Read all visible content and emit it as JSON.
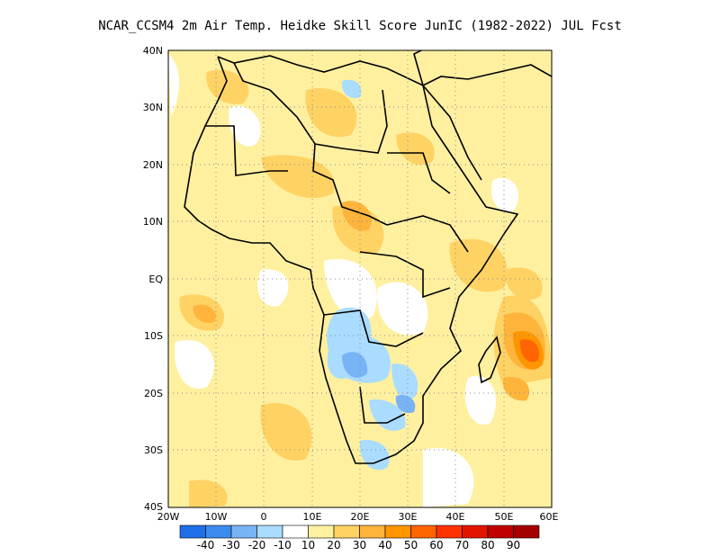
{
  "title": "NCAR_CCSM4  2m Air Temp. Heidke Skill Score JunIC (1982-2022) JUL Fcst",
  "map": {
    "lat_labels": [
      "40N",
      "30N",
      "20N",
      "10N",
      "EQ",
      "10S",
      "20S",
      "30S",
      "40S"
    ],
    "lon_labels": [
      "20W",
      "10W",
      "0",
      "10E",
      "20E",
      "30E",
      "40E",
      "50E",
      "60E"
    ],
    "lon_range": [
      -20,
      60
    ],
    "lat_range": [
      -40,
      40
    ],
    "gridlines": "dotted"
  },
  "colorbar": {
    "colors": [
      "#1e6ee8",
      "#3c8cf0",
      "#78b4f5",
      "#aadcff",
      "#ffffff",
      "#fff0a0",
      "#ffd264",
      "#ffb43c",
      "#ff9600",
      "#ff6400",
      "#ff3200",
      "#e11400",
      "#c00000",
      "#a50000"
    ],
    "labels": [
      "-40",
      "-30",
      "-20",
      "-10",
      "10",
      "20",
      "30",
      "40",
      "50",
      "60",
      "70",
      "80",
      "90"
    ]
  }
}
